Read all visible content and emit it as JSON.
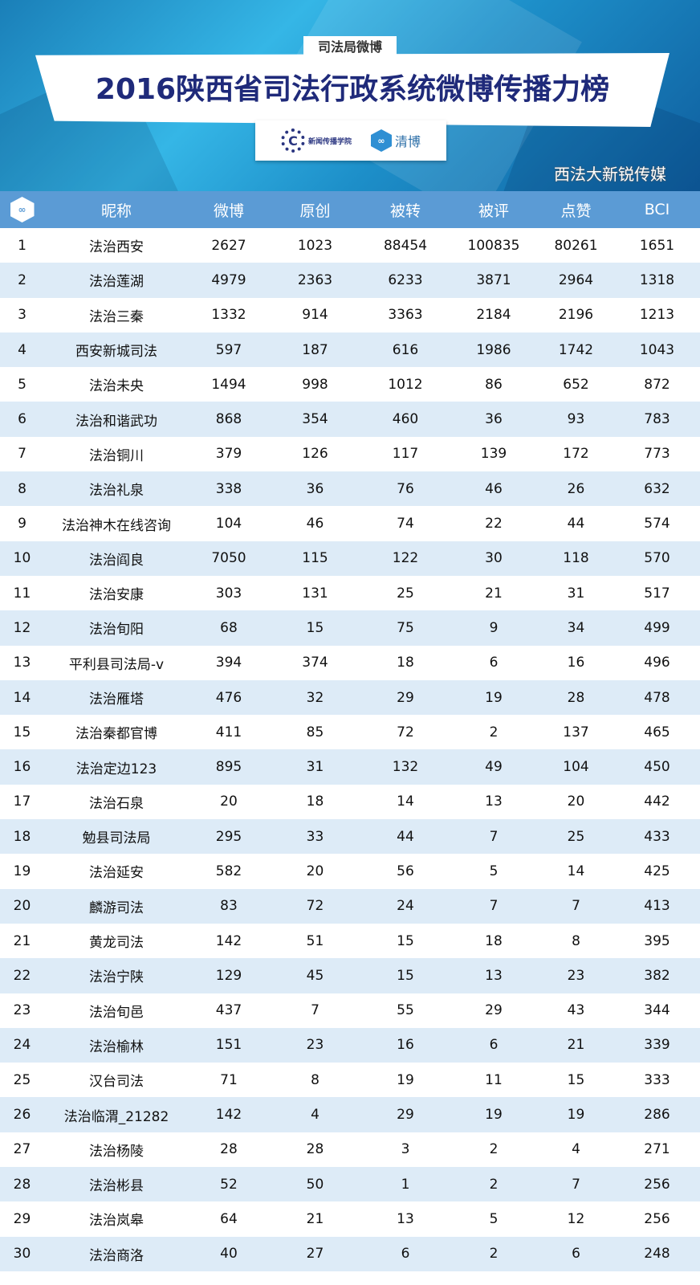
{
  "banner": {
    "tag": "司法局微博",
    "title": "2016陕西省司法行政系统微博传播力榜",
    "logo1_text": "新闻传播学院",
    "logo2_text": "清博",
    "logo_icon": "infinity-hexagon-icon"
  },
  "table": {
    "headers": [
      "昵称",
      "微博",
      "原创",
      "被转",
      "被评",
      "点赞",
      "BCI"
    ],
    "header_icon": "infinity-hexagon-icon",
    "colors": {
      "header": "#5b9bd5",
      "alt_row": "#ddebf7"
    },
    "rows": [
      [
        "1",
        "法治西安",
        "2627",
        "1023",
        "88454",
        "100835",
        "80261",
        "1651"
      ],
      [
        "2",
        "法治莲湖",
        "4979",
        "2363",
        "6233",
        "3871",
        "2964",
        "1318"
      ],
      [
        "3",
        "法治三秦",
        "1332",
        "914",
        "3363",
        "2184",
        "2196",
        "1213"
      ],
      [
        "4",
        "西安新城司法",
        "597",
        "187",
        "616",
        "1986",
        "1742",
        "1043"
      ],
      [
        "5",
        "法治未央",
        "1494",
        "998",
        "1012",
        "86",
        "652",
        "872"
      ],
      [
        "6",
        "法治和谐武功",
        "868",
        "354",
        "460",
        "36",
        "93",
        "783"
      ],
      [
        "7",
        "法治铜川",
        "379",
        "126",
        "117",
        "139",
        "172",
        "773"
      ],
      [
        "8",
        "法治礼泉",
        "338",
        "36",
        "76",
        "46",
        "26",
        "632"
      ],
      [
        "9",
        "法治神木在线咨询",
        "104",
        "46",
        "74",
        "22",
        "44",
        "574"
      ],
      [
        "10",
        "法治阎良",
        "7050",
        "115",
        "122",
        "30",
        "118",
        "570"
      ],
      [
        "11",
        "法治安康",
        "303",
        "131",
        "25",
        "21",
        "31",
        "517"
      ],
      [
        "12",
        "法治旬阳",
        "68",
        "15",
        "75",
        "9",
        "34",
        "499"
      ],
      [
        "13",
        "平利县司法局-v",
        "394",
        "374",
        "18",
        "6",
        "16",
        "496"
      ],
      [
        "14",
        "法治雁塔",
        "476",
        "32",
        "29",
        "19",
        "28",
        "478"
      ],
      [
        "15",
        "法治秦都官博",
        "411",
        "85",
        "72",
        "2",
        "137",
        "465"
      ],
      [
        "16",
        "法治定边123",
        "895",
        "31",
        "132",
        "49",
        "104",
        "450"
      ],
      [
        "17",
        "法治石泉",
        "20",
        "18",
        "14",
        "13",
        "20",
        "442"
      ],
      [
        "18",
        "勉县司法局",
        "295",
        "33",
        "44",
        "7",
        "25",
        "433"
      ],
      [
        "19",
        "法治延安",
        "582",
        "20",
        "56",
        "5",
        "14",
        "425"
      ],
      [
        "20",
        "麟游司法",
        "83",
        "72",
        "24",
        "7",
        "7",
        "413"
      ],
      [
        "21",
        "黄龙司法",
        "142",
        "51",
        "15",
        "18",
        "8",
        "395"
      ],
      [
        "22",
        "法治宁陕",
        "129",
        "45",
        "15",
        "13",
        "23",
        "382"
      ],
      [
        "23",
        "法治旬邑",
        "437",
        "7",
        "55",
        "29",
        "43",
        "344"
      ],
      [
        "24",
        "法治榆林",
        "151",
        "23",
        "16",
        "6",
        "21",
        "339"
      ],
      [
        "25",
        "汉台司法",
        "71",
        "8",
        "19",
        "11",
        "15",
        "333"
      ],
      [
        "26",
        "法治临渭_21282",
        "142",
        "4",
        "29",
        "19",
        "19",
        "286"
      ],
      [
        "27",
        "法治杨陵",
        "28",
        "28",
        "3",
        "2",
        "4",
        "271"
      ],
      [
        "28",
        "法治彬县",
        "52",
        "50",
        "1",
        "2",
        "7",
        "256"
      ],
      [
        "29",
        "法治岚皋",
        "64",
        "21",
        "13",
        "5",
        "12",
        "256"
      ],
      [
        "30",
        "法治商洛",
        "40",
        "27",
        "6",
        "2",
        "6",
        "248"
      ]
    ]
  },
  "watermark": "西法大新锐传媒"
}
